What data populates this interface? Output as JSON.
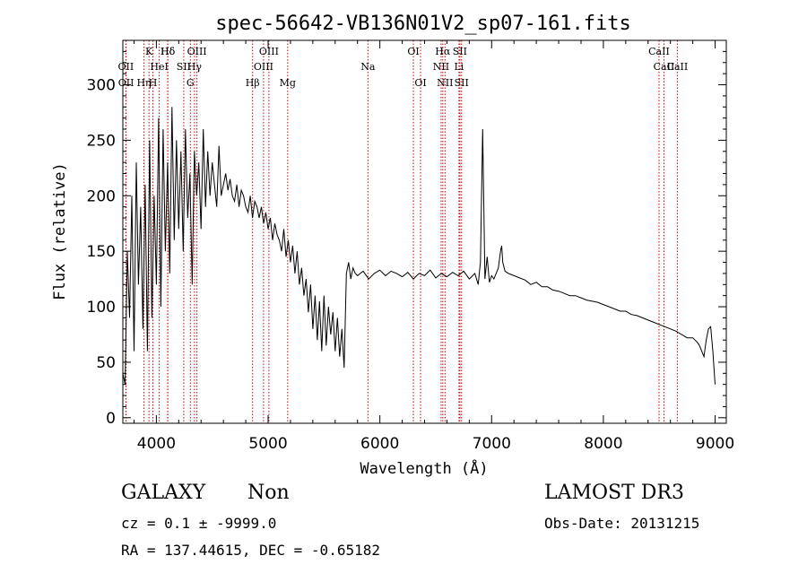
{
  "chart_data": {
    "type": "line",
    "title": "spec-56642-VB136N01V2_sp07-161.fits",
    "xlabel": "Wavelength (Å)",
    "ylabel": "Flux (relative)",
    "xlim": [
      3700,
      9100
    ],
    "ylim": [
      -5,
      340
    ],
    "xticks": [
      4000,
      5000,
      6000,
      7000,
      8000,
      9000
    ],
    "yticks": [
      0,
      50,
      100,
      150,
      200,
      250,
      300
    ],
    "line_color": "#000000",
    "marker_color": "#cc0000",
    "series": [
      {
        "name": "flux",
        "x": [
          3700,
          3720,
          3740,
          3760,
          3780,
          3800,
          3820,
          3840,
          3860,
          3880,
          3900,
          3920,
          3940,
          3960,
          3980,
          4000,
          4020,
          4040,
          4060,
          4080,
          4100,
          4120,
          4140,
          4160,
          4180,
          4200,
          4220,
          4240,
          4260,
          4280,
          4300,
          4320,
          4340,
          4360,
          4380,
          4400,
          4420,
          4440,
          4460,
          4480,
          4500,
          4520,
          4540,
          4560,
          4580,
          4600,
          4620,
          4640,
          4660,
          4680,
          4700,
          4720,
          4740,
          4760,
          4780,
          4800,
          4820,
          4840,
          4860,
          4880,
          4900,
          4920,
          4940,
          4960,
          4980,
          5000,
          5020,
          5040,
          5060,
          5080,
          5100,
          5120,
          5140,
          5160,
          5180,
          5200,
          5220,
          5240,
          5260,
          5280,
          5300,
          5320,
          5340,
          5360,
          5380,
          5400,
          5420,
          5440,
          5460,
          5480,
          5500,
          5520,
          5540,
          5560,
          5580,
          5600,
          5620,
          5640,
          5660,
          5680,
          5700,
          5720,
          5740,
          5760,
          5780,
          5800,
          5850,
          5900,
          5950,
          6000,
          6050,
          6100,
          6150,
          6200,
          6250,
          6300,
          6350,
          6400,
          6450,
          6500,
          6550,
          6600,
          6650,
          6700,
          6750,
          6800,
          6850,
          6880,
          6900,
          6920,
          6940,
          6960,
          6980,
          7000,
          7020,
          7040,
          7060,
          7080,
          7090,
          7100,
          7120,
          7150,
          7200,
          7250,
          7300,
          7350,
          7400,
          7450,
          7500,
          7550,
          7600,
          7650,
          7700,
          7750,
          7800,
          7850,
          7900,
          7950,
          8000,
          8050,
          8100,
          8150,
          8200,
          8250,
          8300,
          8350,
          8400,
          8450,
          8500,
          8550,
          8600,
          8650,
          8700,
          8750,
          8800,
          8820,
          8840,
          8860,
          8880,
          8900,
          8920,
          8940,
          8960,
          8980,
          9000
        ],
        "y": [
          40,
          30,
          150,
          90,
          200,
          60,
          230,
          120,
          190,
          80,
          210,
          60,
          250,
          90,
          200,
          120,
          270,
          100,
          260,
          150,
          230,
          130,
          280,
          160,
          250,
          170,
          240,
          150,
          260,
          180,
          220,
          120,
          240,
          200,
          230,
          170,
          260,
          190,
          240,
          200,
          230,
          210,
          190,
          245,
          200,
          210,
          220,
          205,
          215,
          200,
          195,
          210,
          190,
          205,
          200,
          190,
          185,
          200,
          180,
          195,
          190,
          180,
          190,
          175,
          185,
          170,
          180,
          160,
          175,
          165,
          160,
          150,
          170,
          145,
          160,
          140,
          155,
          130,
          150,
          120,
          135,
          110,
          125,
          95,
          120,
          80,
          110,
          70,
          105,
          60,
          110,
          65,
          100,
          75,
          95,
          60,
          90,
          55,
          80,
          45,
          130,
          140,
          125,
          135,
          130,
          128,
          132,
          125,
          130,
          133,
          128,
          132,
          130,
          127,
          131,
          125,
          130,
          128,
          133,
          126,
          130,
          127,
          131,
          128,
          132,
          125,
          130,
          120,
          140,
          260,
          125,
          145,
          122,
          128,
          125,
          130,
          135,
          150,
          155,
          140,
          132,
          130,
          128,
          126,
          124,
          120,
          122,
          118,
          118,
          115,
          114,
          112,
          110,
          110,
          108,
          106,
          105,
          104,
          102,
          100,
          98,
          96,
          96,
          93,
          92,
          90,
          88,
          86,
          84,
          82,
          80,
          78,
          75,
          72,
          72,
          70,
          68,
          65,
          60,
          55,
          70,
          80,
          82,
          60,
          30
        ]
      }
    ],
    "line_markers": [
      {
        "wl": 3727,
        "label": "OII",
        "row": 2
      },
      {
        "wl": 3729,
        "label": "OII",
        "row": 3
      },
      {
        "wl": 3889,
        "label": "Hη",
        "row": 3
      },
      {
        "wl": 3934,
        "label": "K",
        "row": 1
      },
      {
        "wl": 3969,
        "label": "H",
        "row": 3
      },
      {
        "wl": 4026,
        "label": "HeI",
        "row": 2
      },
      {
        "wl": 4102,
        "label": "Hδ",
        "row": 1
      },
      {
        "wl": 4102,
        "label": "Hδ",
        "row": 1
      },
      {
        "wl": 4245,
        "label": "SII",
        "row": 2
      },
      {
        "wl": 4304,
        "label": "G",
        "row": 3
      },
      {
        "wl": 4341,
        "label": "Hγ",
        "row": 2
      },
      {
        "wl": 4363,
        "label": "OIII",
        "row": 1
      },
      {
        "wl": 4861,
        "label": "Hβ",
        "row": 3
      },
      {
        "wl": 4959,
        "label": "OIII",
        "row": 2
      },
      {
        "wl": 5007,
        "label": "OIII",
        "row": 1
      },
      {
        "wl": 5175,
        "label": "Mg",
        "row": 3
      },
      {
        "wl": 5893,
        "label": "Na",
        "row": 2
      },
      {
        "wl": 6300,
        "label": "OI",
        "row": 1
      },
      {
        "wl": 6364,
        "label": "OI",
        "row": 3
      },
      {
        "wl": 6548,
        "label": "NII",
        "row": 2
      },
      {
        "wl": 6563,
        "label": "Hα",
        "row": 1
      },
      {
        "wl": 6583,
        "label": "NII",
        "row": 3
      },
      {
        "wl": 6708,
        "label": "Li",
        "row": 2
      },
      {
        "wl": 6716,
        "label": "SII",
        "row": 1
      },
      {
        "wl": 6731,
        "label": "SII",
        "row": 3
      },
      {
        "wl": 8498,
        "label": "CaII",
        "row": 1
      },
      {
        "wl": 8542,
        "label": "CaII",
        "row": 2
      },
      {
        "wl": 8662,
        "label": "CaII",
        "row": 2
      }
    ]
  },
  "footer": {
    "class_label": "GALAXY",
    "subclass_label": "Non",
    "cz_text": "cz = 0.1 ± -9999.0",
    "coords_text": "RA = 137.44615, DEC =  -0.65182",
    "survey_label": "LAMOST DR3",
    "obs_date_text": "Obs-Date: 20131215"
  }
}
